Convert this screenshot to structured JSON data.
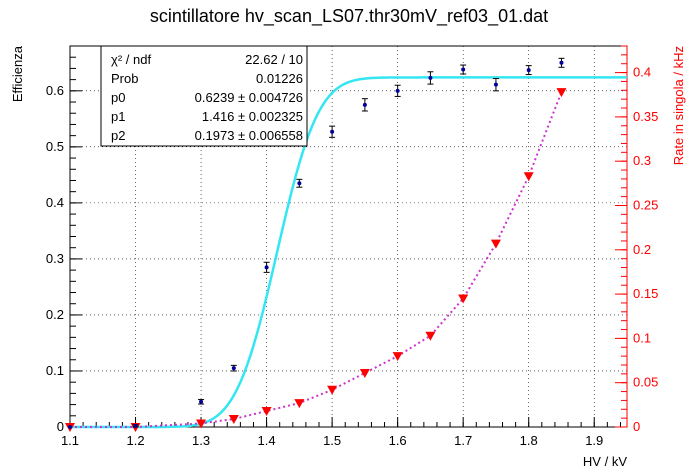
{
  "chart_data": {
    "type": "scatter",
    "title": "scintillatore hv_scan_LS07.thr30mV_ref03_01.dat",
    "xlabel": "HV / kV",
    "ylabel": "Efficienza",
    "ylabel_right": "Rate in singola / kHz",
    "xlim": [
      1.1,
      1.95
    ],
    "ylim": [
      0,
      0.68
    ],
    "ylim_right": [
      0,
      0.43
    ],
    "x_ticks": [
      "1.1",
      "1.2",
      "1.3",
      "1.4",
      "1.5",
      "1.6",
      "1.7",
      "1.8",
      "1.9"
    ],
    "y_ticks": [
      "0",
      "0.1",
      "0.2",
      "0.3",
      "0.4",
      "0.5",
      "0.6"
    ],
    "y_ticks_right": [
      "0",
      "0.05",
      "0.1",
      "0.15",
      "0.2",
      "0.25",
      "0.3",
      "0.35",
      "0.4"
    ],
    "grid": true,
    "series": [
      {
        "axis": "left",
        "color": "#000099",
        "marker": "dot",
        "x": [
          1.1,
          1.2,
          1.3,
          1.35,
          1.4,
          1.45,
          1.5,
          1.55,
          1.6,
          1.65,
          1.7,
          1.75,
          1.8,
          1.85
        ],
        "y": [
          0.0,
          0.002,
          0.045,
          0.105,
          0.285,
          0.435,
          0.527,
          0.575,
          0.6,
          0.623,
          0.638,
          0.611,
          0.637,
          0.65
        ],
        "err": [
          0.0,
          0.002,
          0.004,
          0.005,
          0.009,
          0.007,
          0.01,
          0.011,
          0.01,
          0.011,
          0.008,
          0.011,
          0.008,
          0.008
        ]
      },
      {
        "axis": "left",
        "type": "fit",
        "color": "#33e6f2",
        "fit_params": {
          "p0": 0.6239,
          "p1": 1.416,
          "p2": 0.1973
        }
      },
      {
        "axis": "right",
        "color": "#ff0000",
        "marker": "triangle-down",
        "line": "dotted",
        "line_color": "#cc33cc",
        "x": [
          1.1,
          1.2,
          1.3,
          1.35,
          1.4,
          1.45,
          1.5,
          1.55,
          1.6,
          1.65,
          1.7,
          1.75,
          1.8,
          1.85
        ],
        "y": [
          0.0,
          0.0,
          0.004,
          0.009,
          0.018,
          0.027,
          0.042,
          0.061,
          0.08,
          0.103,
          0.145,
          0.207,
          0.283,
          0.378
        ]
      }
    ],
    "stats_box": {
      "position": "top-left",
      "rows": [
        {
          "label": "χ² / ndf",
          "value": "22.62 / 10"
        },
        {
          "label": "Prob",
          "value": "0.01226"
        },
        {
          "label": "p0",
          "value": "0.6239 ± 0.004726"
        },
        {
          "label": "p1",
          "value": "1.416 ± 0.002325"
        },
        {
          "label": "p2",
          "value": "0.1973 ± 0.006558"
        }
      ]
    }
  }
}
